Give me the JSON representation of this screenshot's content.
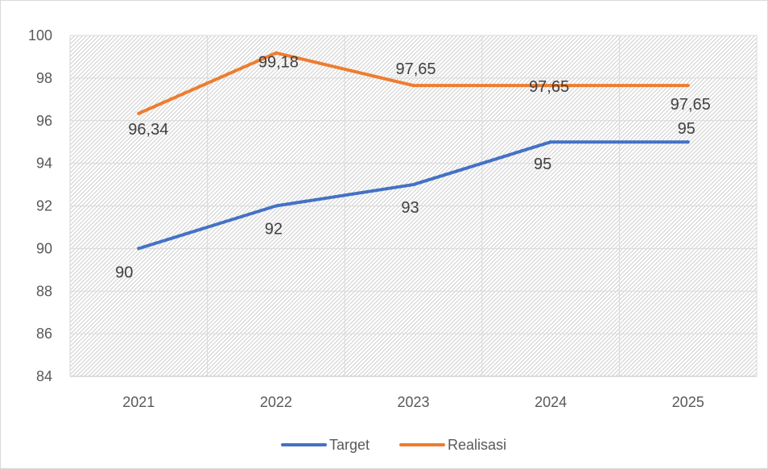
{
  "chart_data": {
    "type": "line",
    "categories": [
      "2021",
      "2022",
      "2023",
      "2024",
      "2025"
    ],
    "ylim": [
      84,
      100
    ],
    "yticks": [
      84,
      86,
      88,
      90,
      92,
      94,
      96,
      98,
      100
    ],
    "grid": true,
    "legend_position": "bottom",
    "series": [
      {
        "name": "Target",
        "color": "#4472c4",
        "values": [
          90,
          92,
          93,
          95,
          95
        ],
        "labels": [
          "90",
          "92",
          "93",
          "95",
          "95"
        ]
      },
      {
        "name": "Realisasi",
        "color": "#ed7d31",
        "values": [
          96.34,
          99.18,
          97.65,
          97.65,
          97.65
        ],
        "labels": [
          "96,34",
          "99,18",
          "97,65",
          "97,65",
          "97,65"
        ]
      }
    ]
  }
}
